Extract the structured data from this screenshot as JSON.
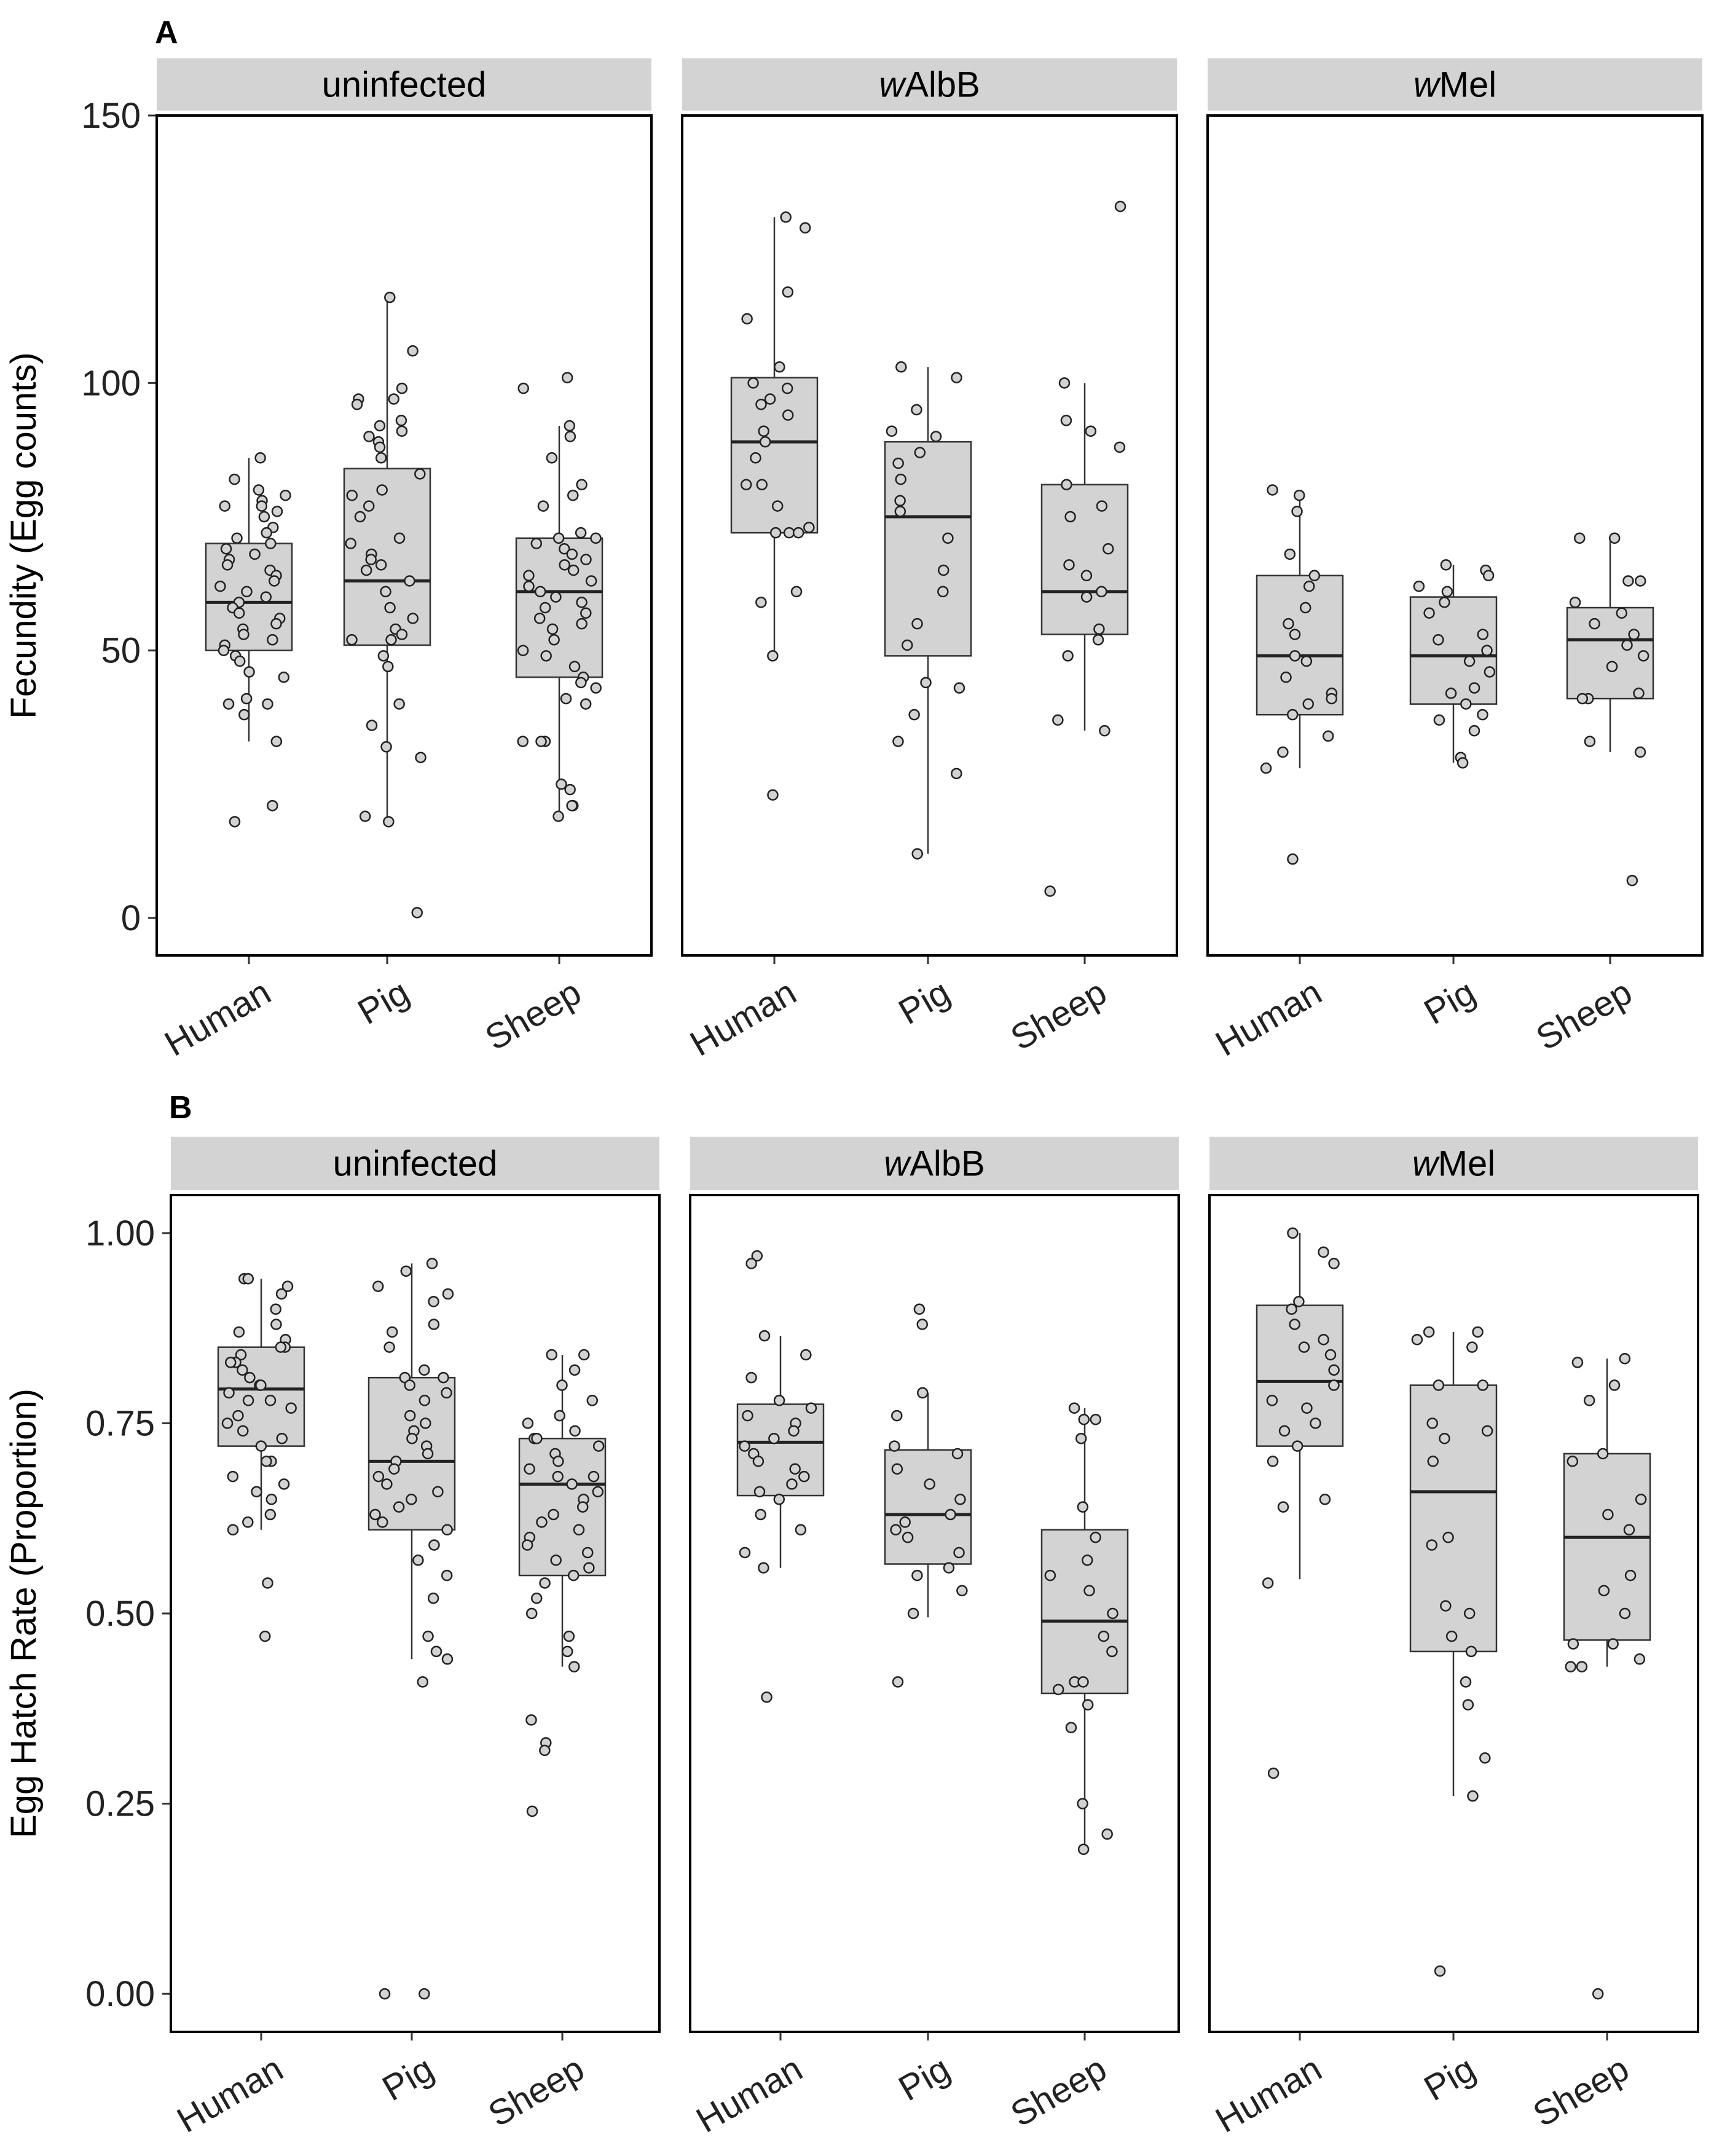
{
  "chart_data": [
    {
      "type": "box",
      "panel_label": "A",
      "ylabel": "Fecundity (Egg counts)",
      "ylim": [
        -7,
        150
      ],
      "yticks": [
        0,
        50,
        100,
        150
      ],
      "ytick_labels": [
        "0",
        "50",
        "100",
        "150"
      ],
      "facets": [
        {
          "strip": {
            "italic": "",
            "rest": "uninfected"
          },
          "groups": [
            {
              "category": "Human",
              "stats": {
                "q1": 50,
                "median": 59,
                "q3": 70,
                "whisker_low": 33,
                "whisker_high": 86
              },
              "points": [
                86,
                82,
                80,
                79,
                78,
                77,
                77,
                76,
                75,
                73,
                72,
                71,
                70,
                69,
                68,
                67,
                66,
                65,
                64,
                63,
                62,
                61,
                60,
                59,
                58,
                57,
                56,
                55,
                54,
                53,
                52,
                51,
                50,
                49,
                48,
                46,
                45,
                41,
                40,
                40,
                38,
                33,
                21,
                18
              ]
            },
            {
              "category": "Pig",
              "stats": {
                "q1": 51,
                "median": 63,
                "q3": 84,
                "whisker_low": 18,
                "whisker_high": 116
              },
              "points": [
                116,
                106,
                99,
                97,
                97,
                96,
                93,
                92,
                91,
                90,
                89,
                88,
                86,
                83,
                80,
                79,
                77,
                75,
                71,
                70,
                68,
                67,
                66,
                65,
                63,
                61,
                58,
                56,
                54,
                53,
                52,
                52,
                49,
                47,
                40,
                36,
                32,
                30,
                19,
                18,
                1
              ]
            },
            {
              "category": "Sheep",
              "stats": {
                "q1": 45,
                "median": 61,
                "q3": 71,
                "whisker_low": 19,
                "whisker_high": 92
              },
              "points": [
                101,
                99,
                92,
                90,
                86,
                81,
                79,
                77,
                72,
                71,
                71,
                70,
                69,
                68,
                67,
                66,
                65,
                64,
                63,
                62,
                61,
                60,
                59,
                58,
                57,
                56,
                55,
                54,
                52,
                50,
                49,
                47,
                45,
                44,
                43,
                41,
                40,
                33,
                33,
                33,
                25,
                24,
                21,
                21,
                19
              ]
            }
          ]
        },
        {
          "strip": {
            "italic": "w",
            "rest": "AlbB"
          },
          "groups": [
            {
              "category": "Human",
              "stats": {
                "q1": 72,
                "median": 89,
                "q3": 101,
                "whisker_low": 49,
                "whisker_high": 131
              },
              "points": [
                131,
                129,
                117,
                112,
                103,
                100,
                99,
                97,
                96,
                94,
                91,
                89,
                86,
                81,
                81,
                77,
                73,
                72,
                72,
                72,
                61,
                59,
                49,
                23
              ]
            },
            {
              "category": "Pig",
              "stats": {
                "q1": 49,
                "median": 75,
                "q3": 89,
                "whisker_low": 12,
                "whisker_high": 103
              },
              "points": [
                103,
                101,
                95,
                91,
                90,
                87,
                85,
                82,
                78,
                76,
                71,
                65,
                61,
                55,
                51,
                44,
                43,
                38,
                33,
                27,
                12
              ]
            },
            {
              "category": "Sheep",
              "stats": {
                "q1": 53,
                "median": 61,
                "q3": 81,
                "whisker_low": 35,
                "whisker_high": 100
              },
              "points": [
                133,
                100,
                93,
                91,
                88,
                81,
                77,
                75,
                69,
                66,
                64,
                61,
                60,
                54,
                52,
                49,
                37,
                35,
                5
              ]
            }
          ]
        },
        {
          "strip": {
            "italic": "w",
            "rest": "Mel"
          },
          "groups": [
            {
              "category": "Human",
              "stats": {
                "q1": 38,
                "median": 49,
                "q3": 64,
                "whisker_low": 28,
                "whisker_high": 79
              },
              "points": [
                80,
                79,
                76,
                68,
                64,
                62,
                58,
                55,
                53,
                49,
                48,
                45,
                42,
                41,
                40,
                38,
                34,
                31,
                28,
                11
              ]
            },
            {
              "category": "Pig",
              "stats": {
                "q1": 40,
                "median": 49,
                "q3": 60,
                "whisker_low": 29,
                "whisker_high": 66
              },
              "points": [
                66,
                65,
                64,
                62,
                61,
                59,
                57,
                53,
                52,
                50,
                48,
                46,
                43,
                42,
                40,
                38,
                37,
                35,
                30,
                29
              ]
            },
            {
              "category": "Sheep",
              "stats": {
                "q1": 41,
                "median": 52,
                "q3": 58,
                "whisker_low": 31,
                "whisker_high": 71
              },
              "points": [
                71,
                71,
                63,
                63,
                59,
                57,
                55,
                53,
                51,
                49,
                47,
                42,
                41,
                41,
                33,
                31,
                7
              ]
            }
          ]
        }
      ]
    },
    {
      "type": "box",
      "panel_label": "B",
      "ylabel": "Egg Hatch Rate (Proportion)",
      "ylim": [
        -0.05,
        1.05
      ],
      "yticks": [
        0,
        0.25,
        0.5,
        0.75,
        1.0
      ],
      "ytick_labels": [
        "0.00",
        "0.25",
        "0.50",
        "0.75",
        "1.00"
      ],
      "facets": [
        {
          "strip": {
            "italic": "",
            "rest": "uninfected"
          },
          "groups": [
            {
              "category": "Human",
              "stats": {
                "q1": 0.72,
                "median": 0.795,
                "q3": 0.85,
                "whisker_low": 0.61,
                "whisker_high": 0.94
              },
              "points": [
                0.94,
                0.94,
                0.93,
                0.92,
                0.9,
                0.88,
                0.87,
                0.86,
                0.85,
                0.85,
                0.84,
                0.83,
                0.83,
                0.82,
                0.81,
                0.8,
                0.8,
                0.79,
                0.78,
                0.78,
                0.77,
                0.76,
                0.75,
                0.74,
                0.73,
                0.72,
                0.7,
                0.7,
                0.68,
                0.67,
                0.66,
                0.65,
                0.63,
                0.62,
                0.61,
                0.54,
                0.47
              ]
            },
            {
              "category": "Pig",
              "stats": {
                "q1": 0.61,
                "median": 0.7,
                "q3": 0.81,
                "whisker_low": 0.44,
                "whisker_high": 0.96
              },
              "points": [
                0.96,
                0.95,
                0.93,
                0.92,
                0.91,
                0.88,
                0.87,
                0.85,
                0.82,
                0.81,
                0.81,
                0.8,
                0.79,
                0.78,
                0.76,
                0.75,
                0.74,
                0.73,
                0.72,
                0.71,
                0.7,
                0.69,
                0.68,
                0.67,
                0.66,
                0.65,
                0.64,
                0.63,
                0.62,
                0.61,
                0.59,
                0.57,
                0.55,
                0.52,
                0.47,
                0.45,
                0.44,
                0.41,
                0.0,
                0.0
              ]
            },
            {
              "category": "Sheep",
              "stats": {
                "q1": 0.55,
                "median": 0.67,
                "q3": 0.73,
                "whisker_low": 0.43,
                "whisker_high": 0.84
              },
              "points": [
                0.84,
                0.84,
                0.82,
                0.8,
                0.78,
                0.76,
                0.75,
                0.74,
                0.73,
                0.73,
                0.72,
                0.71,
                0.7,
                0.69,
                0.68,
                0.68,
                0.67,
                0.66,
                0.65,
                0.64,
                0.63,
                0.62,
                0.61,
                0.6,
                0.59,
                0.58,
                0.57,
                0.56,
                0.55,
                0.54,
                0.52,
                0.5,
                0.47,
                0.45,
                0.43,
                0.36,
                0.33,
                0.32,
                0.24
              ]
            }
          ]
        },
        {
          "strip": {
            "italic": "w",
            "rest": "AlbB"
          },
          "groups": [
            {
              "category": "Human",
              "stats": {
                "q1": 0.655,
                "median": 0.725,
                "q3": 0.775,
                "whisker_low": 0.56,
                "whisker_high": 0.865
              },
              "points": [
                0.97,
                0.96,
                0.865,
                0.84,
                0.81,
                0.78,
                0.77,
                0.76,
                0.75,
                0.74,
                0.73,
                0.72,
                0.71,
                0.7,
                0.69,
                0.68,
                0.67,
                0.66,
                0.65,
                0.63,
                0.61,
                0.58,
                0.56,
                0.39
              ]
            },
            {
              "category": "Pig",
              "stats": {
                "q1": 0.565,
                "median": 0.63,
                "q3": 0.715,
                "whisker_low": 0.495,
                "whisker_high": 0.79
              },
              "points": [
                0.9,
                0.88,
                0.79,
                0.76,
                0.72,
                0.71,
                0.69,
                0.67,
                0.65,
                0.63,
                0.62,
                0.61,
                0.6,
                0.58,
                0.56,
                0.55,
                0.53,
                0.5,
                0.41
              ]
            },
            {
              "category": "Sheep",
              "stats": {
                "q1": 0.395,
                "median": 0.49,
                "q3": 0.61,
                "whisker_low": 0.19,
                "whisker_high": 0.77
              },
              "points": [
                0.77,
                0.755,
                0.755,
                0.73,
                0.64,
                0.6,
                0.57,
                0.55,
                0.53,
                0.5,
                0.47,
                0.45,
                0.41,
                0.41,
                0.4,
                0.38,
                0.35,
                0.25,
                0.21,
                0.19
              ]
            }
          ]
        },
        {
          "strip": {
            "italic": "w",
            "rest": "Mel"
          },
          "groups": [
            {
              "category": "Human",
              "stats": {
                "q1": 0.72,
                "median": 0.805,
                "q3": 0.905,
                "whisker_low": 0.545,
                "whisker_high": 1.0
              },
              "points": [
                1.0,
                0.975,
                0.96,
                0.91,
                0.9,
                0.88,
                0.86,
                0.85,
                0.84,
                0.82,
                0.8,
                0.78,
                0.77,
                0.75,
                0.74,
                0.72,
                0.7,
                0.65,
                0.64,
                0.54,
                0.29
              ]
            },
            {
              "category": "Pig",
              "stats": {
                "q1": 0.45,
                "median": 0.66,
                "q3": 0.8,
                "whisker_low": 0.26,
                "whisker_high": 0.87
              },
              "points": [
                0.87,
                0.87,
                0.86,
                0.85,
                0.8,
                0.8,
                0.75,
                0.74,
                0.73,
                0.7,
                0.6,
                0.59,
                0.51,
                0.5,
                0.47,
                0.45,
                0.41,
                0.38,
                0.31,
                0.26,
                0.03
              ]
            },
            {
              "category": "Sheep",
              "stats": {
                "q1": 0.465,
                "median": 0.6,
                "q3": 0.71,
                "whisker_low": 0.43,
                "whisker_high": 0.835
              },
              "points": [
                0.835,
                0.83,
                0.8,
                0.78,
                0.71,
                0.7,
                0.65,
                0.63,
                0.61,
                0.55,
                0.53,
                0.5,
                0.46,
                0.46,
                0.44,
                0.43,
                0.43,
                0.0
              ]
            }
          ]
        }
      ]
    }
  ]
}
